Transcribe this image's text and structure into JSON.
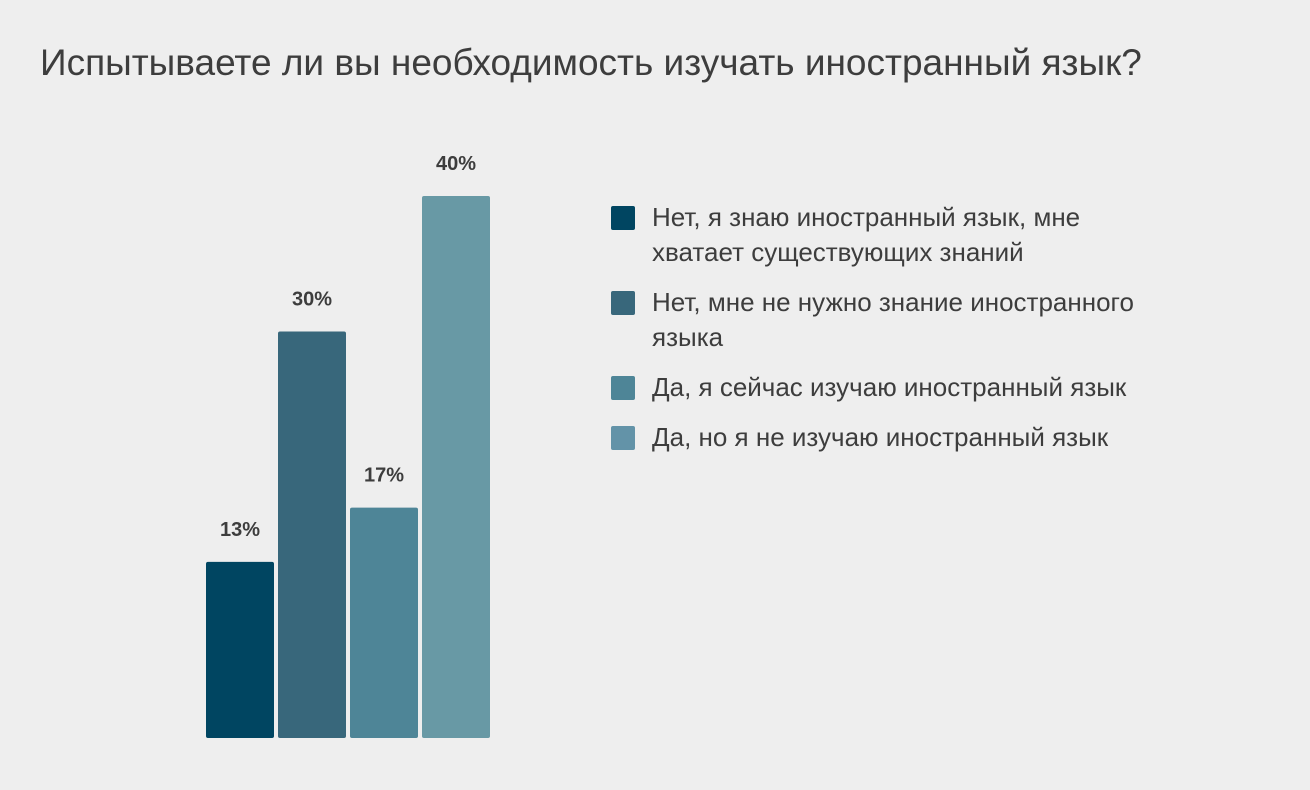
{
  "chart_data": {
    "type": "bar",
    "title": "Испытываете ли вы необходимость изучать иностранный язык?",
    "ylim": [
      0,
      40
    ],
    "grid": false,
    "legend_position": "right",
    "value_labels": [
      "13%",
      "30%",
      "17%",
      "40%"
    ],
    "series": [
      {
        "name": "Нет, я знаю иностранный язык, мне хватает существующих знаний",
        "value": 13,
        "color": "#004561"
      },
      {
        "name": "Нет, мне не нужно знание иностранного языка",
        "value": 30,
        "color": "#38677b"
      },
      {
        "name": "Да, я сейчас изучаю иностранный язык",
        "value": 17,
        "color": "#4e8597"
      },
      {
        "name": "Да, но я не изучаю иностранный язык",
        "value": 40,
        "color": "#6899a5"
      }
    ]
  },
  "legend": {
    "swatch_colors": [
      "#004561",
      "#38677b",
      "#4e8597",
      "#6393a8"
    ]
  }
}
